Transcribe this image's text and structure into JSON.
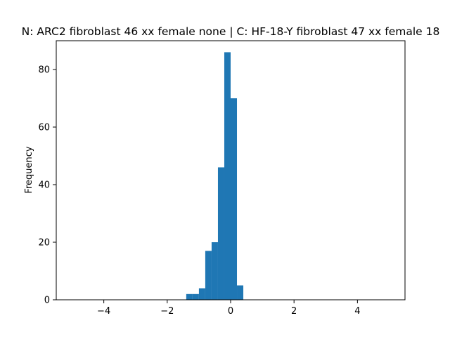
{
  "chart_data": {
    "type": "bar",
    "title": "N: ARC2 fibroblast 46 xx female none | C: HF-18-Y fibroblast 47 xx female 18",
    "xlabel": "",
    "ylabel": "Frequency",
    "xlim": [
      -5.5,
      5.5
    ],
    "ylim": [
      0,
      90
    ],
    "xticks": [
      -4,
      -2,
      0,
      2,
      4
    ],
    "xtick_labels": [
      "−4",
      "−2",
      "0",
      "2",
      "4"
    ],
    "yticks": [
      0,
      20,
      40,
      60,
      80
    ],
    "ytick_labels": [
      "0",
      "20",
      "40",
      "60",
      "80"
    ],
    "grid": false,
    "bar_color": "#1f77b4",
    "bins": [
      {
        "x0": -1.4,
        "x1": -1.2,
        "value": 2
      },
      {
        "x0": -1.2,
        "x1": -1.0,
        "value": 2
      },
      {
        "x0": -1.0,
        "x1": -0.8,
        "value": 4
      },
      {
        "x0": -0.8,
        "x1": -0.6,
        "value": 17
      },
      {
        "x0": -0.6,
        "x1": -0.4,
        "value": 20
      },
      {
        "x0": -0.4,
        "x1": -0.2,
        "value": 46
      },
      {
        "x0": -0.2,
        "x1": 0.0,
        "value": 86
      },
      {
        "x0": 0.0,
        "x1": 0.2,
        "value": 70
      },
      {
        "x0": 0.2,
        "x1": 0.4,
        "value": 5
      }
    ]
  }
}
